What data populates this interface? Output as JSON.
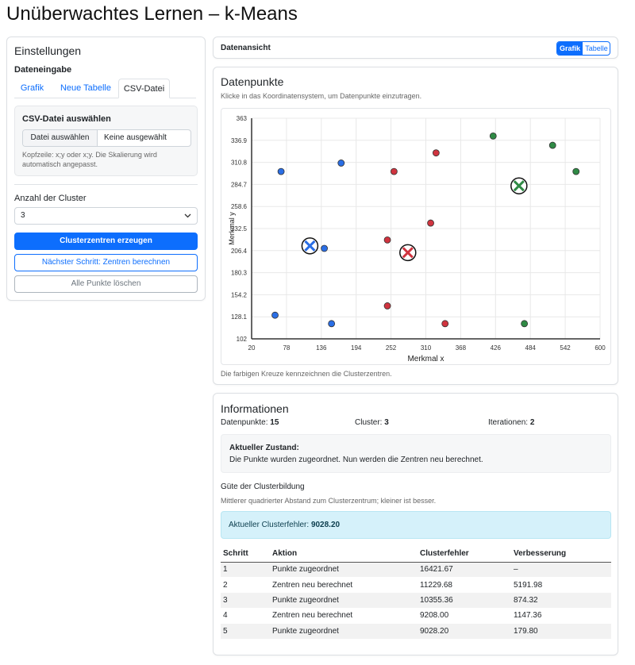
{
  "page": {
    "title": "Unüberwachtes Lernen – k-Means"
  },
  "settings": {
    "title": "Einstellungen",
    "data_input_label": "Dateneingabe",
    "tabs": [
      {
        "label": "Grafik"
      },
      {
        "label": "Neue Tabelle"
      },
      {
        "label": "CSV-Datei"
      }
    ],
    "active_tab": "CSV-Datei",
    "csv": {
      "title": "CSV-Datei auswählen",
      "file_button": "Datei auswählen",
      "file_status": "Keine ausgewählt",
      "hint": "Kopfzeile: x;y oder x;y. Die Skalierung wird automatisch angepasst."
    },
    "cluster_label": "Anzahl der Cluster",
    "cluster_value": "3",
    "buttons": {
      "generate": "Clusterzentren erzeugen",
      "next_step": "Nächster Schritt: Zentren berechnen",
      "clear": "Alle Punkte löschen"
    }
  },
  "dataview": {
    "title": "Datenansicht",
    "toggle": [
      "Grafik",
      "Tabelle"
    ],
    "active": "Grafik"
  },
  "plot": {
    "title": "Datenpunkte",
    "subtitle": "Klicke in das Koordinatensystem, um Datenpunkte einzutragen.",
    "caption": "Die farbigen Kreuze kennzeichnen die Clusterzentren."
  },
  "chart_data": {
    "type": "scatter",
    "xlabel": "Merkmal x",
    "ylabel": "Merkmal y",
    "xlim": [
      20,
      600
    ],
    "ylim": [
      102,
      363
    ],
    "x_ticks": [
      "20",
      "78",
      "136",
      "194",
      "252",
      "310",
      "368",
      "426",
      "484",
      "542",
      "600"
    ],
    "y_ticks": [
      "363",
      "336.9",
      "310.8",
      "284.7",
      "258.6",
      "232.5",
      "206.4",
      "180.3",
      "154.2",
      "128.1",
      "102"
    ],
    "grid": true,
    "colors": {
      "blue": "#2a6ee5",
      "red": "#d0343f",
      "green": "#2f8a45"
    },
    "series": [
      {
        "color": "blue",
        "points": [
          [
            69,
            300
          ],
          [
            169,
            310
          ],
          [
            141,
            209
          ],
          [
            59,
            130
          ],
          [
            153,
            120
          ]
        ]
      },
      {
        "color": "red",
        "points": [
          [
            257,
            300
          ],
          [
            327,
            322
          ],
          [
            318,
            239
          ],
          [
            246,
            219
          ],
          [
            246,
            141
          ],
          [
            342,
            120
          ]
        ]
      },
      {
        "color": "green",
        "points": [
          [
            422,
            342
          ],
          [
            521,
            331
          ],
          [
            560,
            300
          ],
          [
            474,
            120
          ]
        ]
      }
    ],
    "centroids": [
      {
        "color": "blue",
        "x": 117,
        "y": 212
      },
      {
        "color": "red",
        "x": 280,
        "y": 204
      },
      {
        "color": "green",
        "x": 465,
        "y": 283
      }
    ]
  },
  "info": {
    "title": "Informationen",
    "points_label": "Datenpunkte:",
    "points_value": "15",
    "clusters_label": "Cluster:",
    "clusters_value": "3",
    "iterations_label": "Iterationen:",
    "iterations_value": "2",
    "state_title": "Aktueller Zustand:",
    "state_text": "Die Punkte wurden zugeordnet. Nun werden die Zentren neu berechnet.",
    "quality_title": "Güte der Clusterbildung",
    "quality_note": "Mittlerer quadrierter Abstand zum Clusterzentrum; kleiner ist besser.",
    "error_label": "Aktueller Clusterfehler:",
    "error_value": "9028.20",
    "table": {
      "headers": [
        "Schritt",
        "Aktion",
        "Clusterfehler",
        "Verbesserung"
      ],
      "rows": [
        [
          "1",
          "Punkte zugeordnet",
          "16421.67",
          "–"
        ],
        [
          "2",
          "Zentren neu berechnet",
          "11229.68",
          "5191.98"
        ],
        [
          "3",
          "Punkte zugeordnet",
          "10355.36",
          "874.32"
        ],
        [
          "4",
          "Zentren neu berechnet",
          "9208.00",
          "1147.36"
        ],
        [
          "5",
          "Punkte zugeordnet",
          "9028.20",
          "179.80"
        ]
      ]
    }
  }
}
